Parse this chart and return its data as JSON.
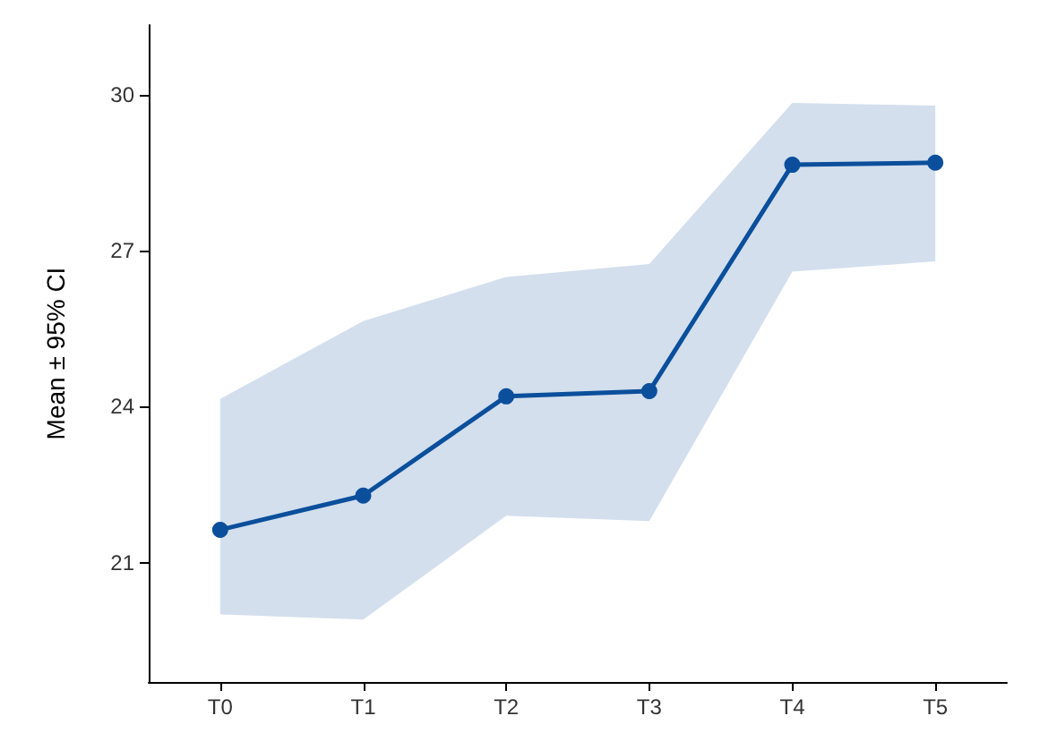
{
  "chart_data": {
    "type": "line",
    "ylabel": "Mean ± 95% CI",
    "categories": [
      "T0",
      "T1",
      "T2",
      "T3",
      "T4",
      "T5"
    ],
    "series": [
      {
        "color": "#0b4f9c",
        "values": [
          21.63,
          22.29,
          24.2,
          24.3,
          28.66,
          28.7
        ],
        "lower": [
          20.0,
          19.9,
          21.9,
          21.8,
          26.6,
          26.8
        ],
        "upper": [
          24.15,
          25.65,
          26.5,
          26.75,
          29.85,
          29.8
        ]
      }
    ],
    "ylim": [
      18.7,
      31.35
    ],
    "yticks": [
      21,
      24,
      27,
      30
    ],
    "grid": false,
    "marker": "circle",
    "line_style": "solid"
  }
}
